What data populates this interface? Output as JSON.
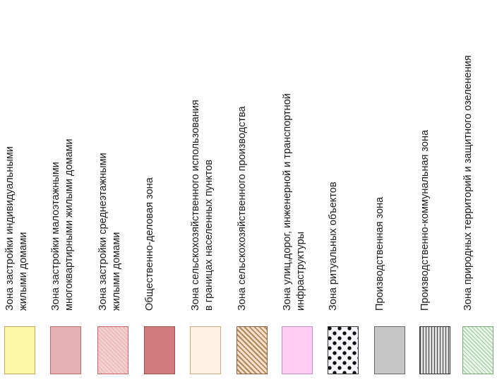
{
  "legend": [
    {
      "lines": [
        "Зона застройки индивидуальными",
        "жилыми домами"
      ],
      "fill": "#fdf7a6",
      "pattern": "solid"
    },
    {
      "lines": [
        "Зона застройки малоэтажными",
        "многоквартирными жилыми домами"
      ],
      "fill": "#e6b0b2",
      "pattern": "solid"
    },
    {
      "lines": [
        "Зона застройки среднеэтажными",
        "жилыми домами"
      ],
      "fill": "#f3d0d0",
      "pattern": "diagonal-hatch"
    },
    {
      "lines": [
        "Общественно-деловая зона"
      ],
      "fill": "#d17b7e",
      "pattern": "solid"
    },
    {
      "lines": [
        "Зона сельскохозяйственного использования",
        "в границах населенных пунктов"
      ],
      "fill": "#fff1e2",
      "pattern": "solid"
    },
    {
      "lines": [
        "Зона сельскохозяйственного производства"
      ],
      "fill": "#f5dfc8",
      "pattern": "diagonal-hatch"
    },
    {
      "lines": [
        "Зона улиц,дорог, инженерной и транспортной",
        "инфраструктуры"
      ],
      "fill": "#ffccf5",
      "pattern": "solid"
    },
    {
      "lines": [
        "Зона ритуальных объектов"
      ],
      "fill": "#f6f6ff",
      "pattern": "dots"
    },
    {
      "lines": [
        "Производственная зона"
      ],
      "fill": "#c6c6c6",
      "pattern": "solid"
    },
    {
      "lines": [
        "Производственно-коммунальная зона"
      ],
      "fill": "#dcdcdc",
      "pattern": "vertical-lines"
    },
    {
      "lines": [
        "Зона природных территорий и защитного озеленения"
      ],
      "fill": "#e8f5e8",
      "pattern": "diagonal-hatch"
    }
  ]
}
